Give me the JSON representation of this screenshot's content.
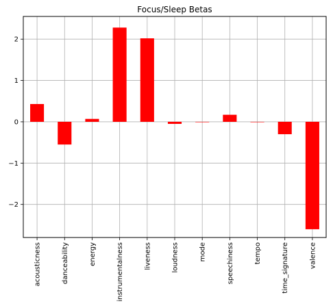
{
  "chart_data": {
    "type": "bar",
    "title": "Focus/Sleep Betas",
    "xlabel": "",
    "ylabel": "",
    "categories": [
      "acousticness",
      "danceability",
      "energy",
      "instrumentalness",
      "liveness",
      "loudness",
      "mode",
      "speechiness",
      "tempo",
      "time_signature",
      "valence"
    ],
    "values": [
      0.43,
      -0.55,
      0.07,
      2.28,
      2.02,
      -0.05,
      -0.01,
      0.17,
      0.0,
      -0.3,
      -2.6
    ],
    "ylim": [
      -2.8,
      2.55
    ],
    "yticks": [
      -2,
      -1,
      0,
      1,
      2
    ],
    "ytick_labels": [
      "−2",
      "−1",
      "0",
      "1",
      "2"
    ],
    "grid": true,
    "bar_color": "#ff0000"
  }
}
